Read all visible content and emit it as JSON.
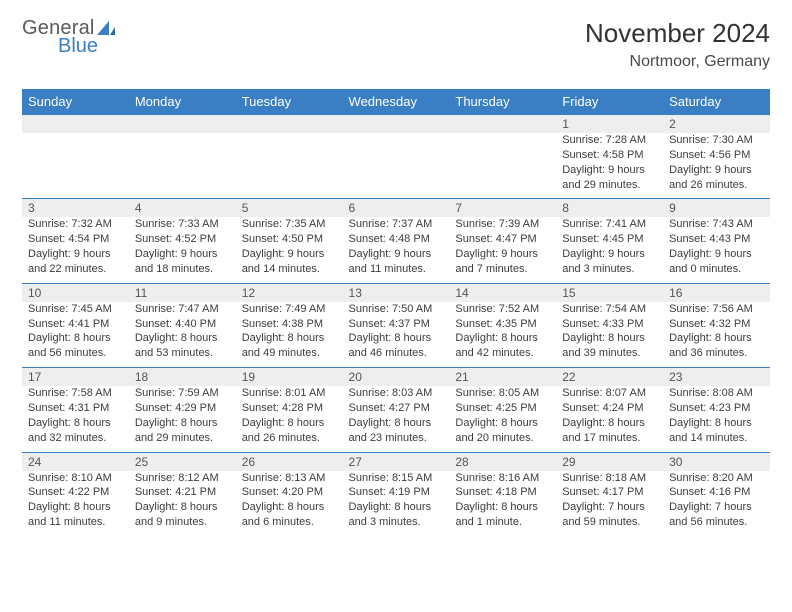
{
  "brand": {
    "general": "General",
    "blue": "Blue",
    "sail_color": "#3a7fc4"
  },
  "header": {
    "month": "November 2024",
    "location": "Nortmoor, Germany"
  },
  "dayHeaders": [
    "Sunday",
    "Monday",
    "Tuesday",
    "Wednesday",
    "Thursday",
    "Friday",
    "Saturday"
  ],
  "colors": {
    "header_bar": "#3a7fc4",
    "date_bg": "#eeeeee",
    "rule": "#3a7fc4",
    "text": "#333333",
    "logo_gray": "#5a5a5a",
    "logo_blue": "#3a7fc4"
  },
  "weeks": [
    [
      null,
      null,
      null,
      null,
      null,
      {
        "date": "1",
        "sunrise": "Sunrise: 7:28 AM",
        "sunset": "Sunset: 4:58 PM",
        "dl1": "Daylight: 9 hours",
        "dl2": "and 29 minutes."
      },
      {
        "date": "2",
        "sunrise": "Sunrise: 7:30 AM",
        "sunset": "Sunset: 4:56 PM",
        "dl1": "Daylight: 9 hours",
        "dl2": "and 26 minutes."
      }
    ],
    [
      {
        "date": "3",
        "sunrise": "Sunrise: 7:32 AM",
        "sunset": "Sunset: 4:54 PM",
        "dl1": "Daylight: 9 hours",
        "dl2": "and 22 minutes."
      },
      {
        "date": "4",
        "sunrise": "Sunrise: 7:33 AM",
        "sunset": "Sunset: 4:52 PM",
        "dl1": "Daylight: 9 hours",
        "dl2": "and 18 minutes."
      },
      {
        "date": "5",
        "sunrise": "Sunrise: 7:35 AM",
        "sunset": "Sunset: 4:50 PM",
        "dl1": "Daylight: 9 hours",
        "dl2": "and 14 minutes."
      },
      {
        "date": "6",
        "sunrise": "Sunrise: 7:37 AM",
        "sunset": "Sunset: 4:48 PM",
        "dl1": "Daylight: 9 hours",
        "dl2": "and 11 minutes."
      },
      {
        "date": "7",
        "sunrise": "Sunrise: 7:39 AM",
        "sunset": "Sunset: 4:47 PM",
        "dl1": "Daylight: 9 hours",
        "dl2": "and 7 minutes."
      },
      {
        "date": "8",
        "sunrise": "Sunrise: 7:41 AM",
        "sunset": "Sunset: 4:45 PM",
        "dl1": "Daylight: 9 hours",
        "dl2": "and 3 minutes."
      },
      {
        "date": "9",
        "sunrise": "Sunrise: 7:43 AM",
        "sunset": "Sunset: 4:43 PM",
        "dl1": "Daylight: 9 hours",
        "dl2": "and 0 minutes."
      }
    ],
    [
      {
        "date": "10",
        "sunrise": "Sunrise: 7:45 AM",
        "sunset": "Sunset: 4:41 PM",
        "dl1": "Daylight: 8 hours",
        "dl2": "and 56 minutes."
      },
      {
        "date": "11",
        "sunrise": "Sunrise: 7:47 AM",
        "sunset": "Sunset: 4:40 PM",
        "dl1": "Daylight: 8 hours",
        "dl2": "and 53 minutes."
      },
      {
        "date": "12",
        "sunrise": "Sunrise: 7:49 AM",
        "sunset": "Sunset: 4:38 PM",
        "dl1": "Daylight: 8 hours",
        "dl2": "and 49 minutes."
      },
      {
        "date": "13",
        "sunrise": "Sunrise: 7:50 AM",
        "sunset": "Sunset: 4:37 PM",
        "dl1": "Daylight: 8 hours",
        "dl2": "and 46 minutes."
      },
      {
        "date": "14",
        "sunrise": "Sunrise: 7:52 AM",
        "sunset": "Sunset: 4:35 PM",
        "dl1": "Daylight: 8 hours",
        "dl2": "and 42 minutes."
      },
      {
        "date": "15",
        "sunrise": "Sunrise: 7:54 AM",
        "sunset": "Sunset: 4:33 PM",
        "dl1": "Daylight: 8 hours",
        "dl2": "and 39 minutes."
      },
      {
        "date": "16",
        "sunrise": "Sunrise: 7:56 AM",
        "sunset": "Sunset: 4:32 PM",
        "dl1": "Daylight: 8 hours",
        "dl2": "and 36 minutes."
      }
    ],
    [
      {
        "date": "17",
        "sunrise": "Sunrise: 7:58 AM",
        "sunset": "Sunset: 4:31 PM",
        "dl1": "Daylight: 8 hours",
        "dl2": "and 32 minutes."
      },
      {
        "date": "18",
        "sunrise": "Sunrise: 7:59 AM",
        "sunset": "Sunset: 4:29 PM",
        "dl1": "Daylight: 8 hours",
        "dl2": "and 29 minutes."
      },
      {
        "date": "19",
        "sunrise": "Sunrise: 8:01 AM",
        "sunset": "Sunset: 4:28 PM",
        "dl1": "Daylight: 8 hours",
        "dl2": "and 26 minutes."
      },
      {
        "date": "20",
        "sunrise": "Sunrise: 8:03 AM",
        "sunset": "Sunset: 4:27 PM",
        "dl1": "Daylight: 8 hours",
        "dl2": "and 23 minutes."
      },
      {
        "date": "21",
        "sunrise": "Sunrise: 8:05 AM",
        "sunset": "Sunset: 4:25 PM",
        "dl1": "Daylight: 8 hours",
        "dl2": "and 20 minutes."
      },
      {
        "date": "22",
        "sunrise": "Sunrise: 8:07 AM",
        "sunset": "Sunset: 4:24 PM",
        "dl1": "Daylight: 8 hours",
        "dl2": "and 17 minutes."
      },
      {
        "date": "23",
        "sunrise": "Sunrise: 8:08 AM",
        "sunset": "Sunset: 4:23 PM",
        "dl1": "Daylight: 8 hours",
        "dl2": "and 14 minutes."
      }
    ],
    [
      {
        "date": "24",
        "sunrise": "Sunrise: 8:10 AM",
        "sunset": "Sunset: 4:22 PM",
        "dl1": "Daylight: 8 hours",
        "dl2": "and 11 minutes."
      },
      {
        "date": "25",
        "sunrise": "Sunrise: 8:12 AM",
        "sunset": "Sunset: 4:21 PM",
        "dl1": "Daylight: 8 hours",
        "dl2": "and 9 minutes."
      },
      {
        "date": "26",
        "sunrise": "Sunrise: 8:13 AM",
        "sunset": "Sunset: 4:20 PM",
        "dl1": "Daylight: 8 hours",
        "dl2": "and 6 minutes."
      },
      {
        "date": "27",
        "sunrise": "Sunrise: 8:15 AM",
        "sunset": "Sunset: 4:19 PM",
        "dl1": "Daylight: 8 hours",
        "dl2": "and 3 minutes."
      },
      {
        "date": "28",
        "sunrise": "Sunrise: 8:16 AM",
        "sunset": "Sunset: 4:18 PM",
        "dl1": "Daylight: 8 hours",
        "dl2": "and 1 minute."
      },
      {
        "date": "29",
        "sunrise": "Sunrise: 8:18 AM",
        "sunset": "Sunset: 4:17 PM",
        "dl1": "Daylight: 7 hours",
        "dl2": "and 59 minutes."
      },
      {
        "date": "30",
        "sunrise": "Sunrise: 8:20 AM",
        "sunset": "Sunset: 4:16 PM",
        "dl1": "Daylight: 7 hours",
        "dl2": "and 56 minutes."
      }
    ]
  ]
}
